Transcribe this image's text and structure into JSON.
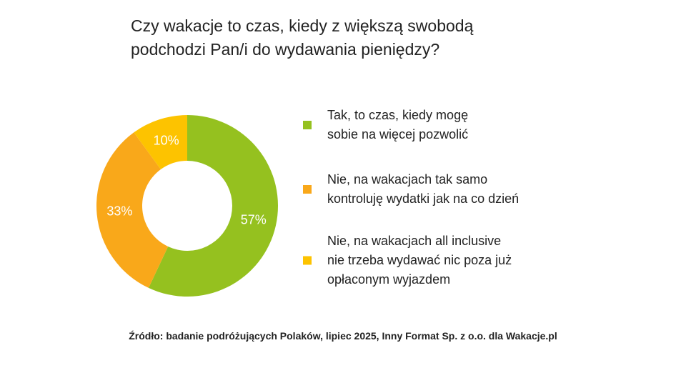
{
  "chart_data": {
    "type": "pie",
    "title": "Czy wakacje to czas, kiedy z większą swobodą\npodchodzi Pan/i do wydawania pieniędzy?",
    "categories": [
      "Tak, to czas, kiedy mogę\nsobie na więcej pozwolić",
      "Nie, na wakacjach tak samo\nkontroluję wydatki jak na co dzień",
      "Nie, na wakacjach all inclusive\nnie trzeba wydawać nic poza już\nopłaconym wyjazdem"
    ],
    "values": [
      57,
      33,
      10
    ],
    "value_labels": [
      "57%",
      "33%",
      "10%"
    ],
    "colors": [
      "#95c11f",
      "#f9a81a",
      "#fdc300"
    ],
    "source": "Źródło: badanie podróżujących Polaków, lipiec 2025, Inny Format Sp. z o.o. dla Wakacje.pl"
  }
}
